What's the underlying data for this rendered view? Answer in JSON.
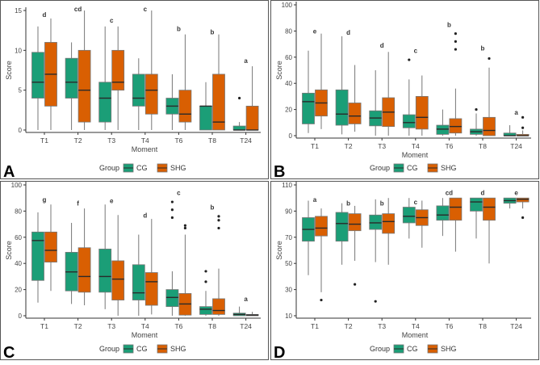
{
  "colors": {
    "CG": "#1b9e77",
    "SHG": "#d95f02"
  },
  "chart_data": [
    {
      "type": "box",
      "panel_label": "A",
      "xlabel": "Moment",
      "ylabel": "Score",
      "ylim": [
        0,
        15
      ],
      "yticks": [
        0,
        5,
        10,
        15
      ],
      "categories": [
        "T1",
        "T2",
        "T3",
        "T4",
        "T6",
        "T8",
        "T24"
      ],
      "legend": {
        "title": "Group",
        "entries": [
          "CG",
          "SHG"
        ],
        "placement": "bottom"
      },
      "letters": [
        {
          "text": "d",
          "y": 14.5
        },
        {
          "text": "cd",
          "y": 15.2
        },
        {
          "text": "c",
          "y": 13.8
        },
        {
          "text": "c",
          "y": 15.2
        },
        {
          "text": "b",
          "y": 12.7
        },
        {
          "text": "b",
          "y": 12.3
        },
        {
          "text": "a",
          "y": 8.7
        }
      ],
      "series": [
        {
          "name": "CG",
          "boxes": [
            {
              "min": 0,
              "q1": 4,
              "median": 6,
              "q3": 9.75,
              "max": 13,
              "outliers": []
            },
            {
              "min": 0,
              "q1": 4,
              "median": 6,
              "q3": 9,
              "max": 11,
              "outliers": []
            },
            {
              "min": 0,
              "q1": 1,
              "median": 4,
              "q3": 6,
              "max": 13,
              "outliers": []
            },
            {
              "min": 0,
              "q1": 3,
              "median": 4,
              "q3": 7,
              "max": 9,
              "outliers": []
            },
            {
              "min": 0,
              "q1": 2,
              "median": 3,
              "q3": 4,
              "max": 7,
              "outliers": []
            },
            {
              "min": 0,
              "q1": 0,
              "median": 3,
              "q3": 3,
              "max": 6,
              "outliers": []
            },
            {
              "min": 0,
              "q1": 0,
              "median": 0,
              "q3": 0.5,
              "max": 1,
              "outliers": [
                4
              ]
            }
          ]
        },
        {
          "name": "SHG",
          "boxes": [
            {
              "min": 0,
              "q1": 3,
              "median": 7,
              "q3": 11,
              "max": 14,
              "outliers": []
            },
            {
              "min": 0,
              "q1": 1,
              "median": 5,
              "q3": 10,
              "max": 15,
              "outliers": []
            },
            {
              "min": 0,
              "q1": 5,
              "median": 6,
              "q3": 10,
              "max": 13,
              "outliers": []
            },
            {
              "min": 0,
              "q1": 2,
              "median": 5,
              "q3": 7,
              "max": 15,
              "outliers": []
            },
            {
              "min": 0,
              "q1": 1,
              "median": 2,
              "q3": 5,
              "max": 12,
              "outliers": []
            },
            {
              "min": 0,
              "q1": 0,
              "median": 1,
              "q3": 7,
              "max": 12,
              "outliers": []
            },
            {
              "min": 0,
              "q1": 0,
              "median": 0,
              "q3": 3,
              "max": 8,
              "outliers": []
            }
          ]
        }
      ]
    },
    {
      "type": "box",
      "panel_label": "B",
      "xlabel": "Moment",
      "ylabel": "Score",
      "ylim": [
        0,
        100
      ],
      "yticks": [
        0,
        20,
        40,
        60,
        80,
        100
      ],
      "categories": [
        "T1",
        "T2",
        "T3",
        "T4",
        "T6",
        "T8",
        "T24"
      ],
      "legend": {
        "title": "Group",
        "entries": [
          "CG",
          "SHG"
        ],
        "placement": "bottom"
      },
      "letters": [
        {
          "text": "e",
          "y": 80
        },
        {
          "text": "d",
          "y": 79
        },
        {
          "text": "d",
          "y": 69
        },
        {
          "text": "c",
          "y": 65
        },
        {
          "text": "b",
          "y": 85
        },
        {
          "text": "b",
          "y": 67
        },
        {
          "text": "a",
          "y": 18
        }
      ],
      "series": [
        {
          "name": "CG",
          "boxes": [
            {
              "min": 2,
              "q1": 9,
              "median": 26,
              "q3": 32.5,
              "max": 65,
              "outliers": []
            },
            {
              "min": 1,
              "q1": 8,
              "median": 16.5,
              "q3": 35,
              "max": 76,
              "outliers": []
            },
            {
              "min": 0,
              "q1": 7.5,
              "median": 13.5,
              "q3": 19,
              "max": 50,
              "outliers": []
            },
            {
              "min": 0,
              "q1": 6,
              "median": 10,
              "q3": 16,
              "max": 43,
              "outliers": [
                58
              ]
            },
            {
              "min": 0,
              "q1": 1,
              "median": 5,
              "q3": 8,
              "max": 20,
              "outliers": []
            },
            {
              "min": 0,
              "q1": 1,
              "median": 3,
              "q3": 5,
              "max": 17,
              "outliers": [
                20
              ]
            },
            {
              "min": 0,
              "q1": 0,
              "median": 0,
              "q3": 2,
              "max": 8,
              "outliers": []
            }
          ]
        },
        {
          "name": "SHG",
          "boxes": [
            {
              "min": 5,
              "q1": 15,
              "median": 25,
              "q3": 35,
              "max": 78,
              "outliers": []
            },
            {
              "min": 3,
              "q1": 9,
              "median": 15,
              "q3": 25,
              "max": 54,
              "outliers": []
            },
            {
              "min": 0,
              "q1": 7,
              "median": 18,
              "q3": 29,
              "max": 64,
              "outliers": []
            },
            {
              "min": 0,
              "q1": 5,
              "median": 14,
              "q3": 30,
              "max": 46,
              "outliers": []
            },
            {
              "min": 0,
              "q1": 2,
              "median": 7,
              "q3": 13,
              "max": 36,
              "outliers": [
                66,
                72,
                78
              ]
            },
            {
              "min": 0,
              "q1": 0,
              "median": 4,
              "q3": 14,
              "max": 52,
              "outliers": [
                59
              ]
            },
            {
              "min": 0,
              "q1": 0,
              "median": 0,
              "q3": 1,
              "max": 4,
              "outliers": [
                6,
                14
              ]
            }
          ]
        }
      ]
    },
    {
      "type": "box",
      "panel_label": "C",
      "xlabel": "Moment",
      "ylabel": "Score",
      "ylim": [
        0,
        100
      ],
      "yticks": [
        0,
        20,
        40,
        60,
        80,
        100
      ],
      "categories": [
        "T1",
        "T2",
        "T3",
        "T4",
        "T6",
        "T8",
        "T24"
      ],
      "legend": {
        "title": "Group",
        "entries": [
          "CG",
          "SHG"
        ],
        "placement": "bottom"
      },
      "letters": [
        {
          "text": "g",
          "y": 89
        },
        {
          "text": "f",
          "y": 86
        },
        {
          "text": "e",
          "y": 88
        },
        {
          "text": "d",
          "y": 77
        },
        {
          "text": "c",
          "y": 94
        },
        {
          "text": "b",
          "y": 83
        },
        {
          "text": "a",
          "y": 13
        }
      ],
      "series": [
        {
          "name": "CG",
          "boxes": [
            {
              "min": 10,
              "q1": 27,
              "median": 57.5,
              "q3": 64,
              "max": 79,
              "outliers": []
            },
            {
              "min": 9,
              "q1": 19,
              "median": 33.5,
              "q3": 48.5,
              "max": 71,
              "outliers": []
            },
            {
              "min": 5,
              "q1": 18,
              "median": 30,
              "q3": 51,
              "max": 85,
              "outliers": []
            },
            {
              "min": 0,
              "q1": 12,
              "median": 17.5,
              "q3": 39,
              "max": 62,
              "outliers": []
            },
            {
              "min": 0,
              "q1": 7,
              "median": 14,
              "q3": 20,
              "max": 34,
              "outliers": [
                75,
                81,
                87
              ]
            },
            {
              "min": 0,
              "q1": 1,
              "median": 5,
              "q3": 7,
              "max": 19,
              "outliers": [
                26,
                34
              ]
            },
            {
              "min": 0,
              "q1": 0,
              "median": 1,
              "q3": 2,
              "max": 7,
              "outliers": []
            }
          ]
        },
        {
          "name": "SHG",
          "boxes": [
            {
              "min": 19,
              "q1": 41,
              "median": 50,
              "q3": 64,
              "max": 85,
              "outliers": []
            },
            {
              "min": 8,
              "q1": 18,
              "median": 30,
              "q3": 52,
              "max": 82,
              "outliers": []
            },
            {
              "min": 0,
              "q1": 12,
              "median": 28,
              "q3": 42,
              "max": 77,
              "outliers": []
            },
            {
              "min": 1,
              "q1": 8,
              "median": 26,
              "q3": 33,
              "max": 74,
              "outliers": []
            },
            {
              "min": 0,
              "q1": 0.5,
              "median": 9,
              "q3": 17,
              "max": 62,
              "outliers": [
                67,
                69
              ]
            },
            {
              "min": 0,
              "q1": 1,
              "median": 4,
              "q3": 13,
              "max": 36,
              "outliers": [
                67,
                73,
                76
              ]
            },
            {
              "min": 0,
              "q1": 0,
              "median": 0.5,
              "q3": 1,
              "max": 3,
              "outliers": []
            }
          ]
        }
      ]
    },
    {
      "type": "box",
      "panel_label": "D",
      "xlabel": "Moment",
      "ylabel": "Score",
      "ylim": [
        10,
        110
      ],
      "yticks": [
        10,
        30,
        50,
        70,
        90,
        110
      ],
      "categories": [
        "T1",
        "T2",
        "T3",
        "T4",
        "T6",
        "T8",
        "T24"
      ],
      "legend": {
        "title": "Group",
        "entries": [
          "CG",
          "SHG"
        ],
        "placement": "bottom"
      },
      "letters": [
        {
          "text": "a",
          "y": 99
        },
        {
          "text": "b",
          "y": 96
        },
        {
          "text": "b",
          "y": 96
        },
        {
          "text": "c",
          "y": 97
        },
        {
          "text": "cd",
          "y": 104
        },
        {
          "text": "d",
          "y": 104
        },
        {
          "text": "e",
          "y": 104
        }
      ],
      "series": [
        {
          "name": "CG",
          "boxes": [
            {
              "min": 41,
              "q1": 67,
              "median": 76,
              "q3": 85,
              "max": 98,
              "outliers": []
            },
            {
              "min": 49,
              "q1": 67,
              "median": 80.5,
              "q3": 89,
              "max": 96,
              "outliers": []
            },
            {
              "min": 51,
              "q1": 76,
              "median": 81,
              "q3": 87,
              "max": 99,
              "outliers": [
                21
              ]
            },
            {
              "min": 69,
              "q1": 81,
              "median": 86,
              "q3": 93,
              "max": 100,
              "outliers": []
            },
            {
              "min": 71,
              "q1": 83,
              "median": 87,
              "q3": 94,
              "max": 100,
              "outliers": []
            },
            {
              "min": 69,
              "q1": 90,
              "median": 97,
              "q3": 100,
              "max": 100,
              "outliers": []
            },
            {
              "min": 92,
              "q1": 96,
              "median": 98,
              "q3": 100,
              "max": 100,
              "outliers": []
            }
          ]
        },
        {
          "name": "SHG",
          "boxes": [
            {
              "min": 28,
              "q1": 71,
              "median": 77,
              "q3": 86,
              "max": 92,
              "outliers": [
                22
              ]
            },
            {
              "min": 52,
              "q1": 75,
              "median": 80,
              "q3": 88,
              "max": 94,
              "outliers": [
                34
              ]
            },
            {
              "min": 49,
              "q1": 73,
              "median": 82,
              "q3": 88,
              "max": 100,
              "outliers": []
            },
            {
              "min": 62,
              "q1": 79,
              "median": 85,
              "q3": 91,
              "max": 98,
              "outliers": []
            },
            {
              "min": 59,
              "q1": 83,
              "median": 93,
              "q3": 100,
              "max": 100,
              "outliers": []
            },
            {
              "min": 50,
              "q1": 83,
              "median": 93,
              "q3": 100,
              "max": 100,
              "outliers": []
            },
            {
              "min": 92,
              "q1": 97,
              "median": 99,
              "q3": 100,
              "max": 100,
              "outliers": [
                85
              ]
            }
          ]
        }
      ]
    }
  ]
}
